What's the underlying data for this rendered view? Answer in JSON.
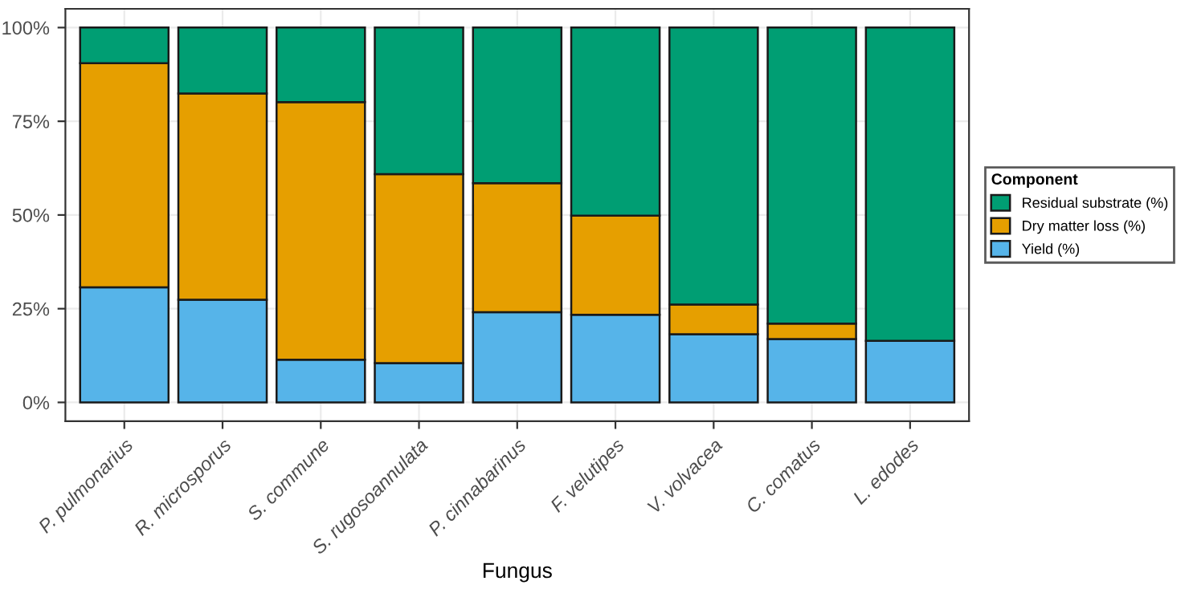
{
  "chart_data": {
    "type": "bar",
    "stacked": true,
    "xlabel": "Fungus",
    "legend_title": "Component",
    "legend": "right",
    "grid": true,
    "categories": [
      "P. pulmonarius",
      "R. microsporus",
      "S. commune",
      "S. rugosoannulata",
      "P. cinnabarinus",
      "F. velutipes",
      "V. volvacea",
      "C. comatus",
      "L. edodes"
    ],
    "series": [
      {
        "name": "Yield (%)",
        "color": "#56b4e9",
        "values": [
          30.7,
          27.4,
          11.4,
          10.5,
          24.1,
          23.4,
          18.2,
          16.9,
          16.4
        ]
      },
      {
        "name": "Dry matter loss (%)",
        "color": "#e69f00",
        "values": [
          59.8,
          55.0,
          68.7,
          50.4,
          34.4,
          26.4,
          7.9,
          4.1,
          0
        ]
      },
      {
        "name": "Residual substrate (%)",
        "color": "#009e73",
        "values": [
          9.5,
          17.6,
          19.9,
          39.1,
          41.5,
          50.2,
          73.9,
          79.0,
          83.6
        ]
      }
    ],
    "ylim": [
      -5,
      105
    ],
    "yticks": [
      {
        "value": 0,
        "label": "0%"
      },
      {
        "value": 25,
        "label": "25%"
      },
      {
        "value": 50,
        "label": "50%"
      },
      {
        "value": 75,
        "label": "75%"
      },
      {
        "value": 100,
        "label": "100%"
      }
    ]
  }
}
